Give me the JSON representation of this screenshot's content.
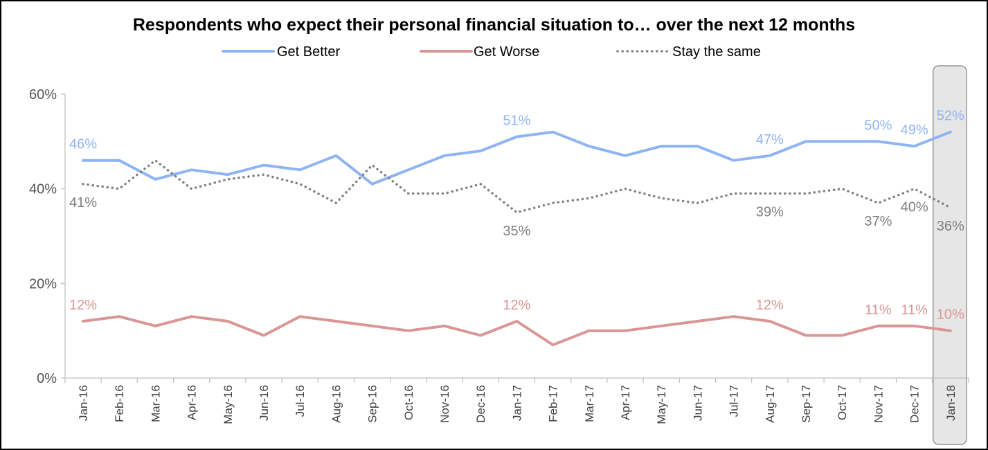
{
  "chart_data": {
    "type": "line",
    "title": "Respondents who expect their personal financial situation to… over the next 12 months",
    "xlabel": "",
    "ylabel": "",
    "ylim": [
      0,
      0.6
    ],
    "yticks": [
      0,
      0.2,
      0.4,
      0.6
    ],
    "ytick_labels": [
      "0%",
      "20%",
      "40%",
      "60%"
    ],
    "grid": false,
    "legend_position": "top-center",
    "categories": [
      "Jan-16",
      "Feb-16",
      "Mar-16",
      "Apr-16",
      "May-16",
      "Jun-16",
      "Jul-16",
      "Aug-16",
      "Sep-16",
      "Oct-16",
      "Nov-16",
      "Dec-16",
      "Jan-17",
      "Feb-17",
      "Mar-17",
      "Apr-17",
      "May-17",
      "Jun-17",
      "Jul-17",
      "Aug-17",
      "Sep-17",
      "Oct-17",
      "Nov-17",
      "Dec-17",
      "Jan-18"
    ],
    "highlight_category": "Jan-18",
    "highlight_color": "#e6e6e6",
    "series": [
      {
        "name": "Get Better",
        "color": "#8eb4f5",
        "style": "solid",
        "values": [
          0.46,
          0.46,
          0.42,
          0.44,
          0.43,
          0.45,
          0.44,
          0.47,
          0.41,
          0.44,
          0.47,
          0.48,
          0.51,
          0.52,
          0.49,
          0.47,
          0.49,
          0.49,
          0.46,
          0.47,
          0.5,
          0.5,
          0.5,
          0.49,
          0.52
        ],
        "data_labels": [
          {
            "index": 0,
            "text": "46%",
            "pos": "above"
          },
          {
            "index": 12,
            "text": "51%",
            "pos": "above"
          },
          {
            "index": 19,
            "text": "47%",
            "pos": "above"
          },
          {
            "index": 22,
            "text": "50%",
            "pos": "above"
          },
          {
            "index": 23,
            "text": "49%",
            "pos": "above"
          },
          {
            "index": 24,
            "text": "52%",
            "pos": "above"
          }
        ]
      },
      {
        "name": "Get Worse",
        "color": "#d99694",
        "style": "solid",
        "values": [
          0.12,
          0.13,
          0.11,
          0.13,
          0.12,
          0.09,
          0.13,
          0.12,
          0.11,
          0.1,
          0.11,
          0.09,
          0.12,
          0.07,
          0.1,
          0.1,
          0.11,
          0.12,
          0.13,
          0.12,
          0.09,
          0.09,
          0.11,
          0.11,
          0.1
        ],
        "data_labels": [
          {
            "index": 0,
            "text": "12%",
            "pos": "above"
          },
          {
            "index": 12,
            "text": "12%",
            "pos": "above"
          },
          {
            "index": 19,
            "text": "12%",
            "pos": "above"
          },
          {
            "index": 22,
            "text": "11%",
            "pos": "above"
          },
          {
            "index": 23,
            "text": "11%",
            "pos": "above"
          },
          {
            "index": 24,
            "text": "10%",
            "pos": "above"
          }
        ]
      },
      {
        "name": "Stay the same",
        "color": "#808080",
        "style": "dotted",
        "values": [
          0.41,
          0.4,
          0.46,
          0.4,
          0.42,
          0.43,
          0.41,
          0.37,
          0.45,
          0.39,
          0.39,
          0.41,
          0.35,
          0.37,
          0.38,
          0.4,
          0.38,
          0.37,
          0.39,
          0.39,
          0.39,
          0.4,
          0.37,
          0.4,
          0.36
        ],
        "data_labels": [
          {
            "index": 0,
            "text": "41%",
            "pos": "below"
          },
          {
            "index": 12,
            "text": "35%",
            "pos": "below"
          },
          {
            "index": 19,
            "text": "39%",
            "pos": "below"
          },
          {
            "index": 22,
            "text": "37%",
            "pos": "below"
          },
          {
            "index": 23,
            "text": "40%",
            "pos": "below"
          },
          {
            "index": 24,
            "text": "36%",
            "pos": "below"
          }
        ]
      }
    ]
  }
}
